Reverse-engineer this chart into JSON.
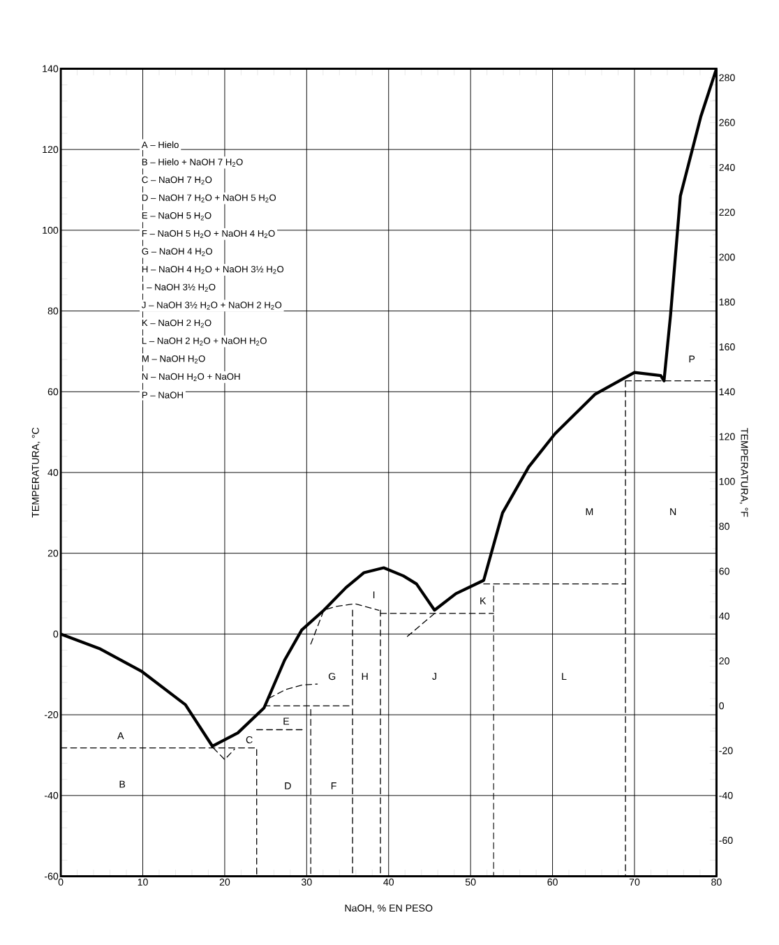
{
  "chart_data": {
    "type": "line",
    "xlabel": "NaOH, % EN PESO",
    "ylabel": "TEMPERATURA, °C",
    "y2label": "TEMPERATURA, °F",
    "xlim": [
      0,
      80
    ],
    "xticks": [
      0,
      10,
      20,
      30,
      40,
      50,
      60,
      70,
      80
    ],
    "ylim": [
      -60,
      140
    ],
    "yticks": [
      -60,
      -40,
      -20,
      0,
      20,
      40,
      60,
      80,
      100,
      120,
      140
    ],
    "y2lim": [
      -76,
      284
    ],
    "y2ticks": [
      -60,
      -40,
      -20,
      0,
      20,
      40,
      60,
      80,
      100,
      120,
      140,
      160,
      180,
      200,
      220,
      240,
      260,
      280
    ],
    "grid": true,
    "series": [
      {
        "color": "#000000",
        "line_style": "solid",
        "x": [
          0,
          4.7,
          9.9,
          15.2,
          18.5,
          21.6,
          24.8,
          27.3,
          29.4,
          32.1,
          34.8,
          37,
          39.4,
          41.8,
          43.4,
          45.6,
          48.2,
          51.6,
          53.9,
          57.1,
          60.3,
          65.2,
          70,
          73.2,
          73.6,
          74.4,
          75.6,
          78.1,
          80
        ],
        "values": [
          0,
          -3.6,
          -9.3,
          -17.5,
          -27.8,
          -24.5,
          -18.3,
          -6.5,
          1.0,
          5.9,
          11.5,
          15.2,
          16.4,
          14.4,
          12.4,
          5.9,
          10,
          13.3,
          30,
          41.4,
          49.6,
          59.4,
          64.8,
          64,
          62.7,
          79,
          108.5,
          128.2,
          140
        ]
      },
      {
        "color": "#000000",
        "line_style": "dashed",
        "x": [
          0,
          23.9,
          23.9
        ],
        "values": [
          -28.2,
          -28.2,
          -60
        ]
      },
      {
        "color": "#000000",
        "line_style": "dashed",
        "x": [
          18.6,
          20,
          21.2
        ],
        "values": [
          -28.2,
          -31.1,
          -28.5
        ]
      },
      {
        "color": "#000000",
        "line_style": "dashed",
        "x": [
          23.9,
          29.8
        ],
        "values": [
          -23.7,
          -23.7
        ]
      },
      {
        "color": "#000000",
        "line_style": "dashed",
        "x": [
          24.8,
          35.3
        ],
        "values": [
          -17.8,
          -17.8
        ]
      },
      {
        "color": "#000000",
        "line_style": "dashed",
        "x": [
          30.5,
          30.5
        ],
        "values": [
          -18.7,
          -60
        ]
      },
      {
        "color": "#000000",
        "line_style": "dashed",
        "x": [
          25.4,
          27.5,
          29.5,
          31.3
        ],
        "values": [
          -15.9,
          -13.7,
          -12.6,
          -12.4
        ]
      },
      {
        "color": "#000000",
        "line_style": "dashed",
        "x": [
          30.5,
          32.1,
          33.5,
          35.9,
          38.8
        ],
        "values": [
          -2.5,
          5.9,
          6.8,
          7.5,
          5.9
        ]
      },
      {
        "color": "#000000",
        "line_style": "dashed",
        "x": [
          35.6,
          35.6
        ],
        "values": [
          5.9,
          -60
        ]
      },
      {
        "color": "#000000",
        "line_style": "dashed",
        "x": [
          39.0,
          39.0
        ],
        "values": [
          5.9,
          -60
        ]
      },
      {
        "color": "#000000",
        "line_style": "dashed",
        "x": [
          39.0,
          52.8
        ],
        "values": [
          5.1,
          5.1
        ]
      },
      {
        "color": "#000000",
        "line_style": "dashed",
        "x": [
          45.6,
          42
        ],
        "values": [
          5.1,
          -1.1
        ]
      },
      {
        "color": "#000000",
        "line_style": "dashed",
        "x": [
          52.8,
          52.8
        ],
        "values": [
          11.9,
          -60
        ]
      },
      {
        "color": "#000000",
        "line_style": "dashed",
        "x": [
          51.6,
          68.9
        ],
        "values": [
          12.4,
          12.4
        ]
      },
      {
        "color": "#000000",
        "line_style": "dashed",
        "x": [
          68.9,
          68.9
        ],
        "values": [
          62.7,
          -60
        ]
      },
      {
        "color": "#000000",
        "line_style": "dashed",
        "x": [
          68.9,
          80
        ],
        "values": [
          62.7,
          62.7
        ]
      }
    ],
    "annotations": [
      "A – Hielo",
      "B – Hielo + NaOH 7 H$_{2}$O",
      "C – NaOH 7 H$_{2}$O",
      "D – NaOH 7 H$_{2}$O + NaOH 5 H$_{2}$O",
      "E – NaOH 5 H$_{2}$O",
      "F – NaOH 5 H$_{2}$O + NaOH 4 H$_{2}$O",
      "G – NaOH 4 H$_{2}$O",
      "H – NaOH 4 H$_{2}$O + NaOH 3½ H$_{2}$O",
      "I – NaOH 3½ H$_{2}$O",
      "J – NaOH 3½ H$_{2}$O + NaOH 2 H$_{2}$O",
      "K – NaOH 2 H$_{2}$O",
      "L – NaOH 2 H$_{2}$O + NaOH H$_{2}$O",
      "M – NaOH H$_{2}$O",
      "N – NaOH H$_{2}$O + NaOH",
      "P – NaOH",
      "A",
      "B",
      "C",
      "D",
      "E",
      "F",
      "G",
      "H",
      "I",
      "J",
      "K",
      "L",
      "M",
      "N",
      "P"
    ]
  }
}
